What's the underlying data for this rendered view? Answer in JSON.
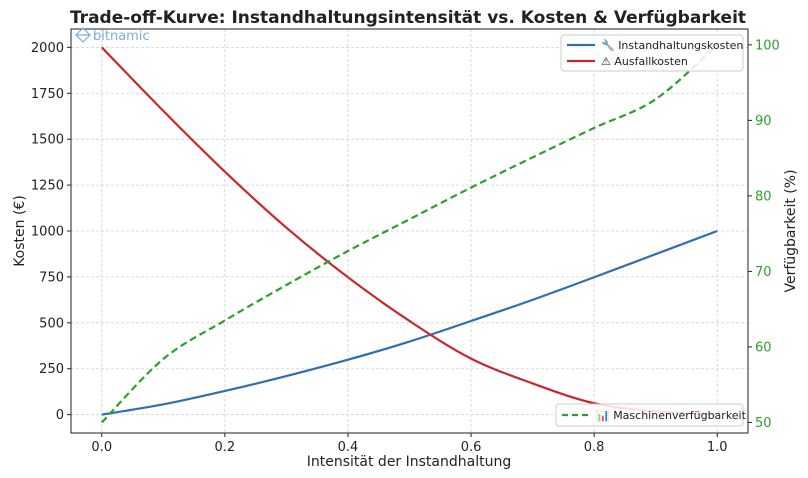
{
  "watermark": {
    "text_left": "bit",
    "text_right": "namic"
  },
  "chart_data": {
    "type": "line",
    "title": "Trade-off-Kurve: Instandhaltungsintensität vs. Kosten & Verfügbarkeit",
    "xlabel": "Intensität der Instandhaltung",
    "ylabel": "Kosten (€)",
    "y2label": "Verfügbarkeit (%)",
    "xlim": [
      -0.05,
      1.05
    ],
    "ylim": [
      -100,
      2100
    ],
    "y2lim": [
      48.6,
      102.1
    ],
    "xticks": [
      "0.0",
      "0.2",
      "0.4",
      "0.6",
      "0.8",
      "1.0"
    ],
    "yticks": [
      "0",
      "250",
      "500",
      "750",
      "1000",
      "1250",
      "1500",
      "1750",
      "2000"
    ],
    "y2ticks": [
      "50",
      "60",
      "70",
      "80",
      "90",
      "100"
    ],
    "grid": true,
    "x": [
      0.0,
      0.1,
      0.2,
      0.3,
      0.4,
      0.5,
      0.6,
      0.7,
      0.8,
      0.9,
      1.0
    ],
    "series": [
      {
        "name": "🔧 Instandhaltungskosten",
        "axis": "left",
        "color": "#2f6fb0",
        "style": "solid",
        "values": [
          0,
          56,
          129,
          210,
          299,
          398,
          510,
          625,
          748,
          874,
          1000
        ]
      },
      {
        "name": "⚠ Ausfallkosten",
        "axis": "left",
        "color": "#c9272d",
        "style": "solid",
        "values": [
          2000,
          1654,
          1323,
          1018,
          748,
          510,
          305,
          170,
          62,
          18,
          0
        ]
      },
      {
        "name": "📊 Maschinenverfügbarkeit",
        "axis": "right",
        "color": "#2ca02c",
        "style": "dashed",
        "values": [
          50,
          58.4,
          63.5,
          68.2,
          72.7,
          76.9,
          81.1,
          85.1,
          89.0,
          92.8,
          100
        ]
      }
    ],
    "legend_left_placement": "top-right",
    "legend_right_placement": "bottom-right"
  }
}
